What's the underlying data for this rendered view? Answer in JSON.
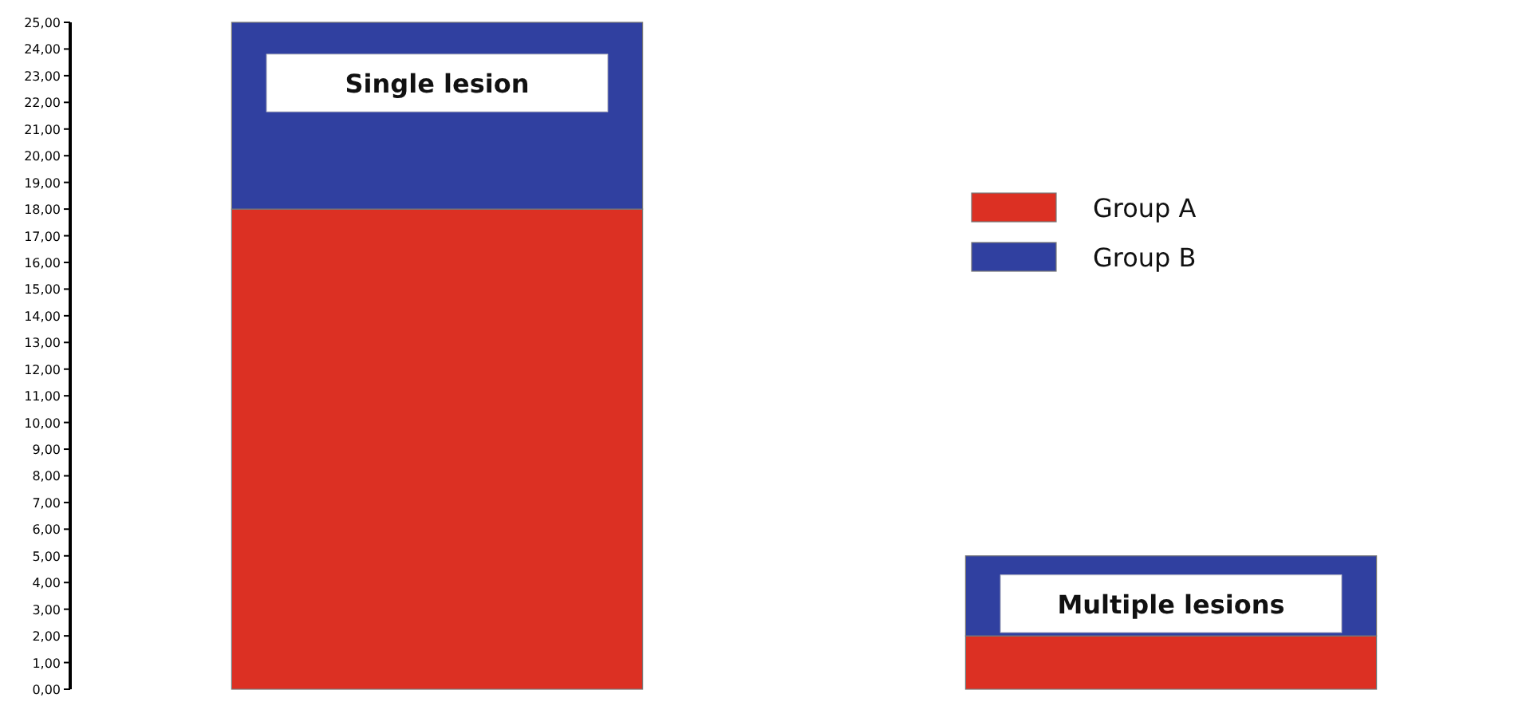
{
  "chart_data": {
    "type": "bar",
    "stacked": true,
    "categories": [
      "Single lesion",
      "Multiple lesions"
    ],
    "series": [
      {
        "name": "Group A",
        "color": "#dc3023",
        "values": [
          18,
          2
        ]
      },
      {
        "name": "Group B",
        "color": "#3040a0",
        "values": [
          7,
          3
        ]
      }
    ],
    "ylim": [
      0,
      25
    ],
    "yticks": [
      {
        "value": 0,
        "label": "0,00"
      },
      {
        "value": 1,
        "label": "1,00"
      },
      {
        "value": 2,
        "label": "2,00"
      },
      {
        "value": 3,
        "label": "3,00"
      },
      {
        "value": 4,
        "label": "4,00"
      },
      {
        "value": 5,
        "label": "5,00"
      },
      {
        "value": 6,
        "label": "6,00"
      },
      {
        "value": 7,
        "label": "7,00"
      },
      {
        "value": 8,
        "label": "8,00"
      },
      {
        "value": 9,
        "label": "9,00"
      },
      {
        "value": 10,
        "label": "10,00"
      },
      {
        "value": 11,
        "label": "11,00"
      },
      {
        "value": 12,
        "label": "12,00"
      },
      {
        "value": 13,
        "label": "13,00"
      },
      {
        "value": 14,
        "label": "14,00"
      },
      {
        "value": 15,
        "label": "15,00"
      },
      {
        "value": 16,
        "label": "16,00"
      },
      {
        "value": 17,
        "label": "17,00"
      },
      {
        "value": 18,
        "label": "18,00"
      },
      {
        "value": 19,
        "label": "19,00"
      },
      {
        "value": 20,
        "label": "20,00"
      },
      {
        "value": 21,
        "label": "21,00"
      },
      {
        "value": 22,
        "label": "22,00"
      },
      {
        "value": 23,
        "label": "23,00"
      },
      {
        "value": 24,
        "label": "24,00"
      },
      {
        "value": 25,
        "label": "25,00"
      }
    ],
    "legend": "right",
    "grid": false
  }
}
